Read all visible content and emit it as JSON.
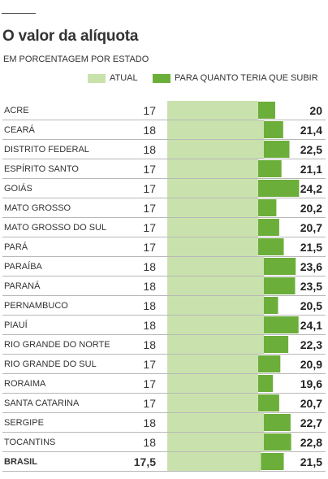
{
  "chart_data": {
    "type": "bar",
    "title": "O valor da alíquota",
    "subtitle": "EM PORCENTAGEM POR ESTADO",
    "legend": [
      "ATUAL",
      "PARA QUANTO TERIA QUE SUBIR"
    ],
    "colors": {
      "current": "#c9e2ad",
      "increase": "#6cae3a",
      "rowline": "#b8b8b8",
      "bg": "#ffffff"
    },
    "categories": [
      "ACRE",
      "CEARÁ",
      "DISTRITO FEDERAL",
      "ESPÍRITO SANTO",
      "GOIÁS",
      "MATO GROSSO",
      "MATO GROSSO DO SUL",
      "PARÁ",
      "PARAÍBA",
      "PARANÁ",
      "PERNAMBUCO",
      "PIAUÍ",
      "RIO GRANDE DO NORTE",
      "RIO GRANDE DO SUL",
      "RORAIMA",
      "SANTA CATARINA",
      "SERGIPE",
      "TOCANTINS",
      "BRASIL"
    ],
    "current_labels": [
      "17",
      "18",
      "18",
      "17",
      "17",
      "17",
      "17",
      "17",
      "18",
      "18",
      "18",
      "18",
      "18",
      "17",
      "17",
      "17",
      "18",
      "18",
      "17,5"
    ],
    "target_labels": [
      "20",
      "21,4",
      "22,5",
      "21,1",
      "24,2",
      "20,2",
      "20,7",
      "21,5",
      "23,6",
      "23,5",
      "20,5",
      "24,1",
      "22,3",
      "20,9",
      "19,6",
      "20,7",
      "22,7",
      "22,8",
      "21,5"
    ],
    "series": [
      {
        "name": "ATUAL",
        "values": [
          17,
          18,
          18,
          17,
          17,
          17,
          17,
          17,
          18,
          18,
          18,
          18,
          18,
          17,
          17,
          17,
          18,
          18,
          17.5
        ]
      },
      {
        "name": "PARA QUANTO TERIA QUE SUBIR",
        "values": [
          20,
          21.4,
          22.5,
          21.1,
          24.2,
          20.2,
          20.7,
          21.5,
          23.6,
          23.5,
          20.5,
          24.1,
          22.3,
          20.9,
          19.6,
          20.7,
          22.7,
          22.8,
          21.5
        ]
      }
    ],
    "bold_last_row": true
  }
}
